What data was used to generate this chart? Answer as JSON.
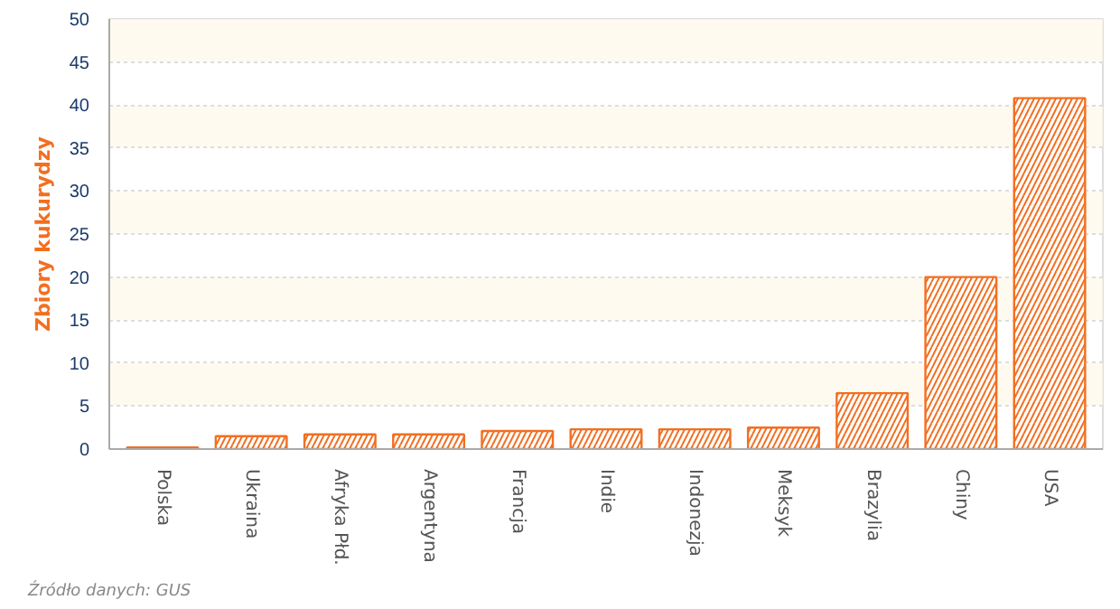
{
  "chart_data": {
    "type": "bar",
    "ylabel": "Zbiory kukurydzy",
    "categories": [
      "Polska",
      "Ukraina",
      "Afryka Płd.",
      "Argentyna",
      "Francja",
      "Indie",
      "Indonezja",
      "Meksyk",
      "Brazylia",
      "Chiny",
      "USA"
    ],
    "values": [
      0.2,
      1.5,
      1.7,
      1.7,
      2.1,
      2.3,
      2.3,
      2.5,
      6.5,
      20,
      40.8
    ],
    "color": "#f26f21",
    "ylim": [
      0,
      50
    ],
    "yticks": [
      0,
      5,
      10,
      15,
      20,
      25,
      30,
      35,
      40,
      45,
      50
    ],
    "grid": "y",
    "annotations": [
      "Źródło danych: GUS"
    ]
  }
}
